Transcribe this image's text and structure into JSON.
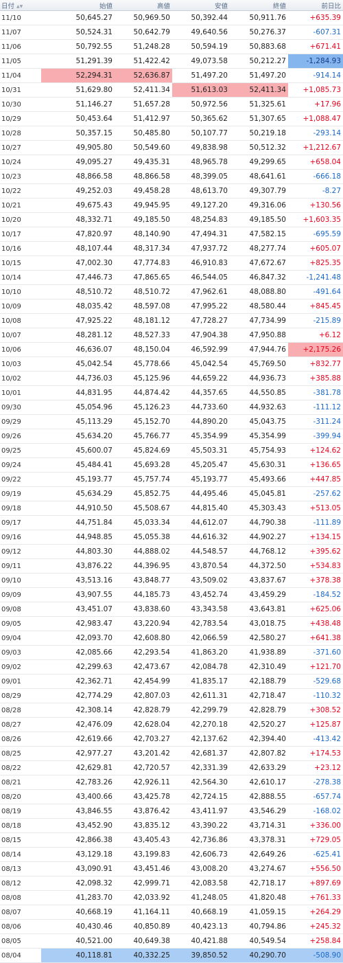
{
  "header": {
    "date": "日付",
    "open": "始値",
    "high": "高値",
    "low": "安値",
    "close": "終値",
    "change": "前日比"
  },
  "rows": [
    {
      "date": "11/10",
      "open": "50,645.27",
      "high": "50,969.50",
      "low": "50,392.44",
      "close": "50,911.76",
      "change": "+635.39"
    },
    {
      "date": "11/07",
      "open": "50,524.31",
      "high": "50,642.79",
      "low": "49,640.56",
      "close": "50,276.37",
      "change": "-607.31"
    },
    {
      "date": "11/06",
      "open": "50,792.55",
      "high": "51,248.28",
      "low": "50,594.19",
      "close": "50,883.68",
      "change": "+671.41"
    },
    {
      "date": "11/05",
      "open": "51,291.39",
      "high": "51,422.42",
      "low": "49,073.58",
      "close": "50,212.27",
      "change": "-1,284.93",
      "hl": {
        "change": "hl-blue"
      }
    },
    {
      "date": "11/04",
      "open": "52,294.31",
      "high": "52,636.87",
      "low": "51,497.20",
      "close": "51,497.20",
      "change": "-914.14",
      "hl": {
        "open": "hl-red",
        "high": "hl-red"
      }
    },
    {
      "date": "10/31",
      "open": "51,629.80",
      "high": "52,411.34",
      "low": "51,613.03",
      "close": "52,411.34",
      "change": "+1,085.73",
      "hl": {
        "low": "hl-red",
        "close": "hl-red"
      }
    },
    {
      "date": "10/30",
      "open": "51,146.27",
      "high": "51,657.28",
      "low": "50,972.56",
      "close": "51,325.61",
      "change": "+17.96"
    },
    {
      "date": "10/29",
      "open": "50,453.64",
      "high": "51,412.97",
      "low": "50,365.62",
      "close": "51,307.65",
      "change": "+1,088.47"
    },
    {
      "date": "10/28",
      "open": "50,357.15",
      "high": "50,485.80",
      "low": "50,107.77",
      "close": "50,219.18",
      "change": "-293.14"
    },
    {
      "date": "10/27",
      "open": "49,905.80",
      "high": "50,549.60",
      "low": "49,838.98",
      "close": "50,512.32",
      "change": "+1,212.67"
    },
    {
      "date": "10/24",
      "open": "49,095.27",
      "high": "49,435.31",
      "low": "48,965.78",
      "close": "49,299.65",
      "change": "+658.04"
    },
    {
      "date": "10/23",
      "open": "48,866.58",
      "high": "48,866.58",
      "low": "48,399.05",
      "close": "48,641.61",
      "change": "-666.18"
    },
    {
      "date": "10/22",
      "open": "49,252.03",
      "high": "49,458.28",
      "low": "48,613.70",
      "close": "49,307.79",
      "change": "-8.27"
    },
    {
      "date": "10/21",
      "open": "49,675.43",
      "high": "49,945.95",
      "low": "49,127.20",
      "close": "49,316.06",
      "change": "+130.56"
    },
    {
      "date": "10/20",
      "open": "48,332.71",
      "high": "49,185.50",
      "low": "48,254.83",
      "close": "49,185.50",
      "change": "+1,603.35"
    },
    {
      "date": "10/17",
      "open": "47,820.97",
      "high": "48,140.90",
      "low": "47,494.31",
      "close": "47,582.15",
      "change": "-695.59"
    },
    {
      "date": "10/16",
      "open": "48,107.44",
      "high": "48,317.34",
      "low": "47,937.72",
      "close": "48,277.74",
      "change": "+605.07"
    },
    {
      "date": "10/15",
      "open": "47,002.30",
      "high": "47,774.83",
      "low": "46,910.83",
      "close": "47,672.67",
      "change": "+825.35"
    },
    {
      "date": "10/14",
      "open": "47,446.73",
      "high": "47,865.65",
      "low": "46,544.05",
      "close": "46,847.32",
      "change": "-1,241.48"
    },
    {
      "date": "10/10",
      "open": "48,510.72",
      "high": "48,510.72",
      "low": "47,962.61",
      "close": "48,088.80",
      "change": "-491.64"
    },
    {
      "date": "10/09",
      "open": "48,035.42",
      "high": "48,597.08",
      "low": "47,995.22",
      "close": "48,580.44",
      "change": "+845.45"
    },
    {
      "date": "10/08",
      "open": "47,925.22",
      "high": "48,181.12",
      "low": "47,728.27",
      "close": "47,734.99",
      "change": "-215.89"
    },
    {
      "date": "10/07",
      "open": "48,281.12",
      "high": "48,527.33",
      "low": "47,904.38",
      "close": "47,950.88",
      "change": "+6.12"
    },
    {
      "date": "10/06",
      "open": "46,636.07",
      "high": "48,150.04",
      "low": "46,592.99",
      "close": "47,944.76",
      "change": "+2,175.26",
      "hl": {
        "change": "hl-red"
      }
    },
    {
      "date": "10/03",
      "open": "45,042.54",
      "high": "45,778.66",
      "low": "45,042.54",
      "close": "45,769.50",
      "change": "+832.77"
    },
    {
      "date": "10/02",
      "open": "44,736.03",
      "high": "45,125.96",
      "low": "44,659.22",
      "close": "44,936.73",
      "change": "+385.88"
    },
    {
      "date": "10/01",
      "open": "44,831.95",
      "high": "44,874.42",
      "low": "44,357.65",
      "close": "44,550.85",
      "change": "-381.78"
    },
    {
      "date": "09/30",
      "open": "45,054.96",
      "high": "45,126.23",
      "low": "44,733.60",
      "close": "44,932.63",
      "change": "-111.12"
    },
    {
      "date": "09/29",
      "open": "45,113.29",
      "high": "45,152.70",
      "low": "44,890.20",
      "close": "45,043.75",
      "change": "-311.24"
    },
    {
      "date": "09/26",
      "open": "45,634.20",
      "high": "45,766.77",
      "low": "45,354.99",
      "close": "45,354.99",
      "change": "-399.94"
    },
    {
      "date": "09/25",
      "open": "45,600.07",
      "high": "45,824.69",
      "low": "45,503.31",
      "close": "45,754.93",
      "change": "+124.62"
    },
    {
      "date": "09/24",
      "open": "45,484.41",
      "high": "45,693.28",
      "low": "45,205.47",
      "close": "45,630.31",
      "change": "+136.65"
    },
    {
      "date": "09/22",
      "open": "45,193.77",
      "high": "45,757.74",
      "low": "45,193.77",
      "close": "45,493.66",
      "change": "+447.85"
    },
    {
      "date": "09/19",
      "open": "45,634.29",
      "high": "45,852.75",
      "low": "44,495.46",
      "close": "45,045.81",
      "change": "-257.62"
    },
    {
      "date": "09/18",
      "open": "44,910.50",
      "high": "45,508.67",
      "low": "44,815.40",
      "close": "45,303.43",
      "change": "+513.05"
    },
    {
      "date": "09/17",
      "open": "44,751.84",
      "high": "45,033.34",
      "low": "44,612.07",
      "close": "44,790.38",
      "change": "-111.89"
    },
    {
      "date": "09/16",
      "open": "44,948.85",
      "high": "45,055.38",
      "low": "44,616.32",
      "close": "44,902.27",
      "change": "+134.15"
    },
    {
      "date": "09/12",
      "open": "44,803.30",
      "high": "44,888.02",
      "low": "44,548.57",
      "close": "44,768.12",
      "change": "+395.62"
    },
    {
      "date": "09/11",
      "open": "43,876.22",
      "high": "44,396.95",
      "low": "43,870.54",
      "close": "44,372.50",
      "change": "+534.83"
    },
    {
      "date": "09/10",
      "open": "43,513.16",
      "high": "43,848.77",
      "low": "43,509.02",
      "close": "43,837.67",
      "change": "+378.38"
    },
    {
      "date": "09/09",
      "open": "43,907.55",
      "high": "44,185.73",
      "low": "43,452.74",
      "close": "43,459.29",
      "change": "-184.52"
    },
    {
      "date": "09/08",
      "open": "43,451.07",
      "high": "43,838.60",
      "low": "43,343.58",
      "close": "43,643.81",
      "change": "+625.06"
    },
    {
      "date": "09/05",
      "open": "42,983.47",
      "high": "43,220.94",
      "low": "42,783.54",
      "close": "43,018.75",
      "change": "+438.48"
    },
    {
      "date": "09/04",
      "open": "42,093.70",
      "high": "42,608.80",
      "low": "42,066.59",
      "close": "42,580.27",
      "change": "+641.38"
    },
    {
      "date": "09/03",
      "open": "42,085.66",
      "high": "42,293.54",
      "low": "41,863.20",
      "close": "41,938.89",
      "change": "-371.60"
    },
    {
      "date": "09/02",
      "open": "42,299.63",
      "high": "42,473.67",
      "low": "42,084.78",
      "close": "42,310.49",
      "change": "+121.70"
    },
    {
      "date": "09/01",
      "open": "42,362.71",
      "high": "42,454.99",
      "low": "41,835.17",
      "close": "42,188.79",
      "change": "-529.68"
    },
    {
      "date": "08/29",
      "open": "42,774.29",
      "high": "42,807.03",
      "low": "42,611.31",
      "close": "42,718.47",
      "change": "-110.32"
    },
    {
      "date": "08/28",
      "open": "42,308.14",
      "high": "42,828.79",
      "low": "42,299.79",
      "close": "42,828.79",
      "change": "+308.52"
    },
    {
      "date": "08/27",
      "open": "42,476.09",
      "high": "42,628.04",
      "low": "42,270.18",
      "close": "42,520.27",
      "change": "+125.87"
    },
    {
      "date": "08/26",
      "open": "42,619.66",
      "high": "42,703.27",
      "low": "42,137.62",
      "close": "42,394.40",
      "change": "-413.42"
    },
    {
      "date": "08/25",
      "open": "42,977.27",
      "high": "43,201.42",
      "low": "42,681.37",
      "close": "42,807.82",
      "change": "+174.53"
    },
    {
      "date": "08/22",
      "open": "42,629.81",
      "high": "42,720.57",
      "low": "42,331.39",
      "close": "42,633.29",
      "change": "+23.12"
    },
    {
      "date": "08/21",
      "open": "42,783.26",
      "high": "42,926.11",
      "low": "42,564.30",
      "close": "42,610.17",
      "change": "-278.38"
    },
    {
      "date": "08/20",
      "open": "43,400.66",
      "high": "43,425.78",
      "low": "42,724.15",
      "close": "42,888.55",
      "change": "-657.74"
    },
    {
      "date": "08/19",
      "open": "43,846.55",
      "high": "43,876.42",
      "low": "43,411.97",
      "close": "43,546.29",
      "change": "-168.02"
    },
    {
      "date": "08/18",
      "open": "43,452.90",
      "high": "43,835.12",
      "low": "43,390.22",
      "close": "43,714.31",
      "change": "+336.00"
    },
    {
      "date": "08/15",
      "open": "42,866.38",
      "high": "43,405.43",
      "low": "42,736.86",
      "close": "43,378.31",
      "change": "+729.05"
    },
    {
      "date": "08/14",
      "open": "43,129.18",
      "high": "43,199.83",
      "low": "42,606.73",
      "close": "42,649.26",
      "change": "-625.41"
    },
    {
      "date": "08/13",
      "open": "43,090.91",
      "high": "43,451.46",
      "low": "43,008.20",
      "close": "43,274.67",
      "change": "+556.50"
    },
    {
      "date": "08/12",
      "open": "42,098.32",
      "high": "42,999.71",
      "low": "42,083.58",
      "close": "42,718.17",
      "change": "+897.69"
    },
    {
      "date": "08/08",
      "open": "41,283.70",
      "high": "42,033.92",
      "low": "41,248.05",
      "close": "41,820.48",
      "change": "+761.33"
    },
    {
      "date": "08/07",
      "open": "40,668.19",
      "high": "41,164.11",
      "low": "40,668.19",
      "close": "41,059.15",
      "change": "+264.29"
    },
    {
      "date": "08/06",
      "open": "40,430.46",
      "high": "40,850.89",
      "low": "40,423.13",
      "close": "40,794.86",
      "change": "+245.32"
    },
    {
      "date": "08/05",
      "open": "40,521.00",
      "high": "40,649.38",
      "low": "40,421.88",
      "close": "40,549.54",
      "change": "+258.84"
    },
    {
      "date": "08/04",
      "open": "40,118.81",
      "high": "40,332.25",
      "low": "39,850.52",
      "close": "40,290.70",
      "change": "-508.90",
      "lastrow": true
    }
  ]
}
